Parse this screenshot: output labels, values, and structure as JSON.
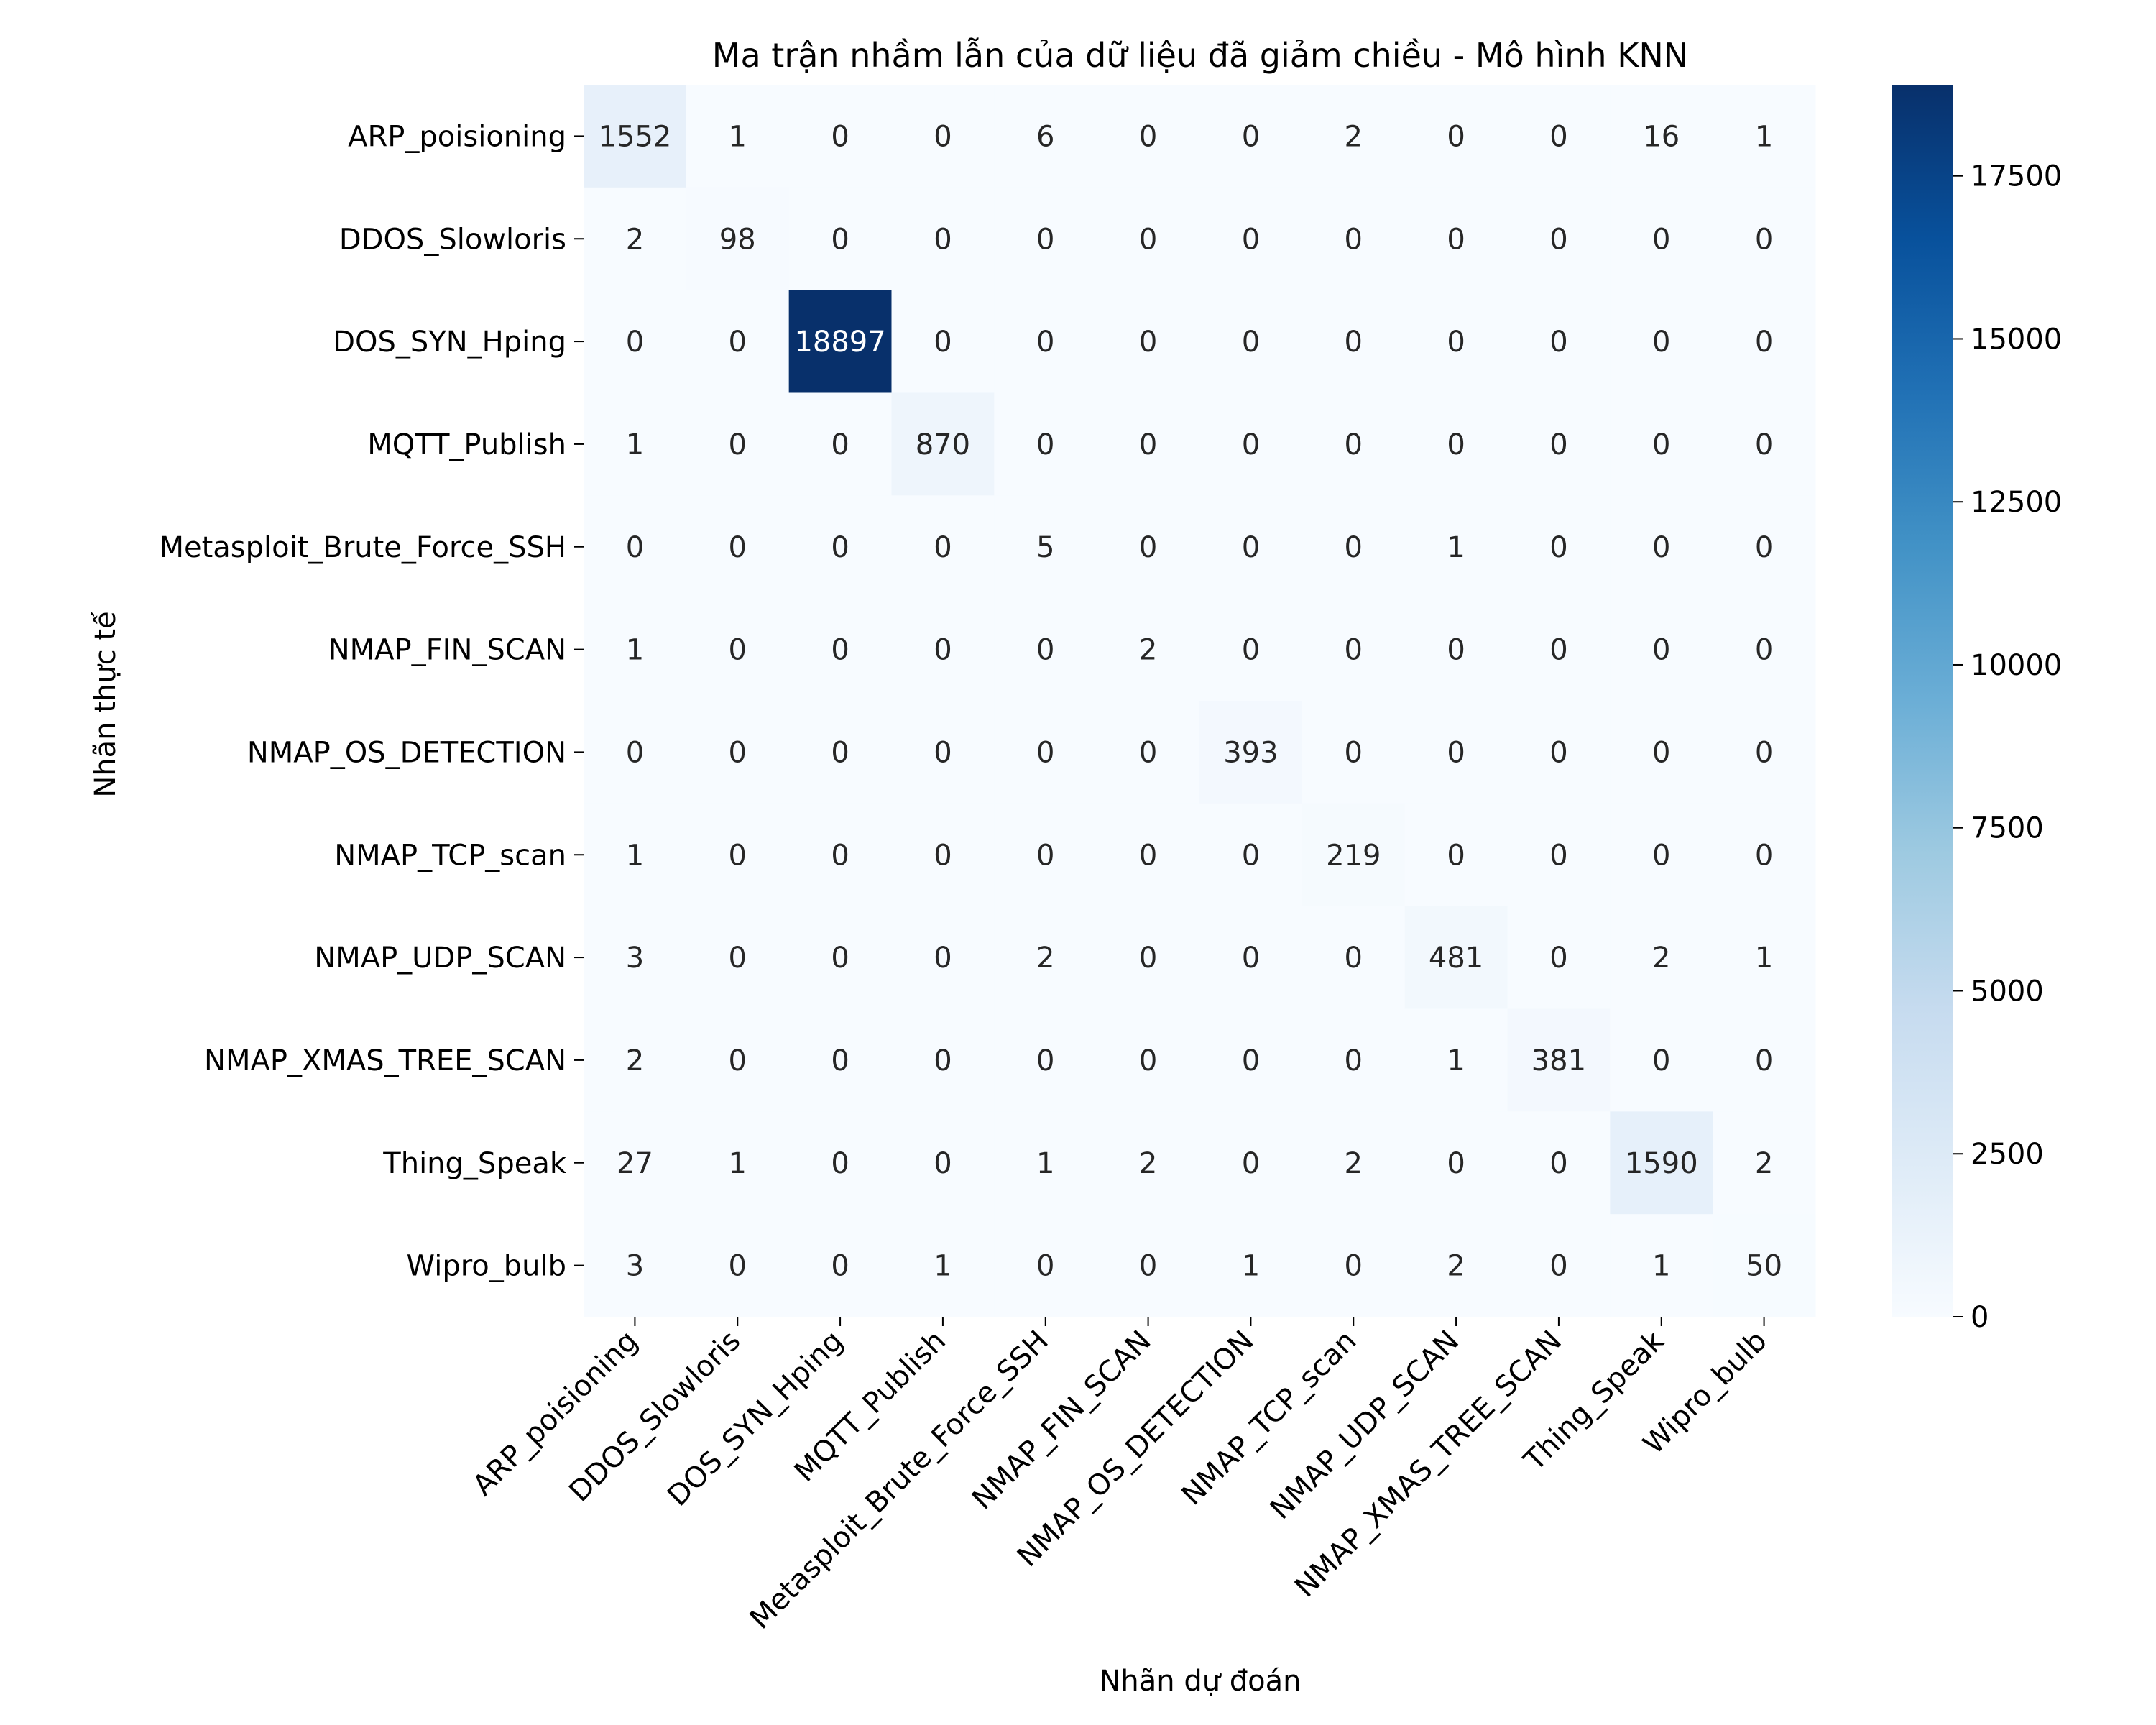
{
  "chart_data": {
    "type": "heatmap",
    "title": "Ma trận nhầm lẫn của dữ liệu đã giảm chiều - Mô hình KNN",
    "xlabel": "Nhãn dự đoán",
    "ylabel": "Nhãn thực tế",
    "x_categories": [
      "ARP_poisioning",
      "DDOS_Slowloris",
      "DOS_SYN_Hping",
      "MQTT_Publish",
      "Metasploit_Brute_Force_SSH",
      "NMAP_FIN_SCAN",
      "NMAP_OS_DETECTION",
      "NMAP_TCP_scan",
      "NMAP_UDP_SCAN",
      "NMAP_XMAS_TREE_SCAN",
      "Thing_Speak",
      "Wipro_bulb"
    ],
    "y_categories": [
      "ARP_poisioning",
      "DDOS_Slowloris",
      "DOS_SYN_Hping",
      "MQTT_Publish",
      "Metasploit_Brute_Force_SSH",
      "NMAP_FIN_SCAN",
      "NMAP_OS_DETECTION",
      "NMAP_TCP_scan",
      "NMAP_UDP_SCAN",
      "NMAP_XMAS_TREE_SCAN",
      "Thing_Speak",
      "Wipro_bulb"
    ],
    "values": [
      [
        1552,
        1,
        0,
        0,
        6,
        0,
        0,
        2,
        0,
        0,
        16,
        1
      ],
      [
        2,
        98,
        0,
        0,
        0,
        0,
        0,
        0,
        0,
        0,
        0,
        0
      ],
      [
        0,
        0,
        18897,
        0,
        0,
        0,
        0,
        0,
        0,
        0,
        0,
        0
      ],
      [
        1,
        0,
        0,
        870,
        0,
        0,
        0,
        0,
        0,
        0,
        0,
        0
      ],
      [
        0,
        0,
        0,
        0,
        5,
        0,
        0,
        0,
        1,
        0,
        0,
        0
      ],
      [
        1,
        0,
        0,
        0,
        0,
        2,
        0,
        0,
        0,
        0,
        0,
        0
      ],
      [
        0,
        0,
        0,
        0,
        0,
        0,
        393,
        0,
        0,
        0,
        0,
        0
      ],
      [
        1,
        0,
        0,
        0,
        0,
        0,
        0,
        219,
        0,
        0,
        0,
        0
      ],
      [
        3,
        0,
        0,
        0,
        2,
        0,
        0,
        0,
        481,
        0,
        2,
        1
      ],
      [
        2,
        0,
        0,
        0,
        0,
        0,
        0,
        0,
        1,
        381,
        0,
        0
      ],
      [
        27,
        1,
        0,
        0,
        1,
        2,
        0,
        2,
        0,
        0,
        1590,
        2
      ],
      [
        3,
        0,
        0,
        1,
        0,
        0,
        1,
        0,
        2,
        0,
        1,
        50
      ]
    ],
    "colormap": "Blues",
    "colorbar": {
      "min": 0,
      "max": 18897,
      "ticks": [
        0,
        2500,
        5000,
        7500,
        10000,
        12500,
        15000,
        17500
      ]
    }
  }
}
